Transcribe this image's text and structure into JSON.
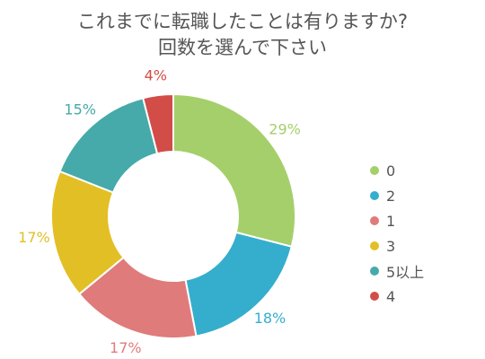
{
  "chart_data": {
    "type": "pie",
    "variant": "donut",
    "title_lines": [
      "これまでに転職したことは有りますか?",
      "回数を選んで下さい"
    ],
    "legend_position": "right",
    "slices": [
      {
        "category": "0",
        "value": 29,
        "label": "29%",
        "color": "#a5cf6a"
      },
      {
        "category": "2",
        "value": 18,
        "label": "18%",
        "color": "#35aecd"
      },
      {
        "category": "1",
        "value": 17,
        "label": "17%",
        "color": "#e07b7b"
      },
      {
        "category": "3",
        "value": 17,
        "label": "17%",
        "color": "#e3bf26"
      },
      {
        "category": "5以上",
        "value": 15,
        "label": "15%",
        "color": "#45aaa9"
      },
      {
        "category": "4",
        "value": 4,
        "label": "4%",
        "color": "#d24d48"
      }
    ]
  }
}
